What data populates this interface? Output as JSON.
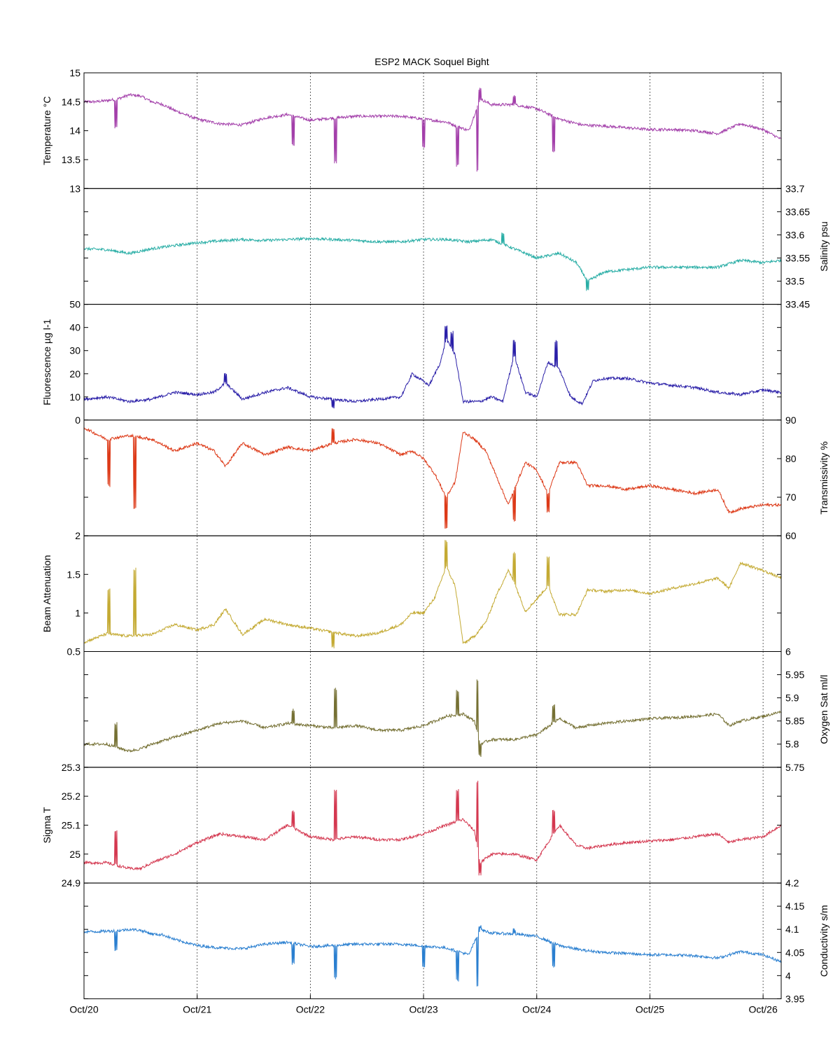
{
  "chart_data": {
    "type": "line",
    "title": "ESP2 MACK  Soquel Bight",
    "x_range": [
      "Oct/20",
      "Oct/26 04:00"
    ],
    "x_ticks": [
      "Oct/20",
      "Oct/21",
      "Oct/22",
      "Oct/23",
      "Oct/24",
      "Oct/25",
      "Oct/26"
    ],
    "panels": [
      {
        "name": "temperature",
        "ylabel": "Temperature °C",
        "axis_side": "left",
        "ylim": [
          13,
          15
        ],
        "ticks": [
          "13",
          "13.5",
          "14",
          "14.5",
          "15"
        ],
        "color": "#a33faa",
        "x_days": [
          0.0,
          0.1,
          0.2,
          0.3,
          0.4,
          0.5,
          0.6,
          0.7,
          0.8,
          1.0,
          1.2,
          1.4,
          1.6,
          1.8,
          2.0,
          2.2,
          2.4,
          2.6,
          2.8,
          3.0,
          3.2,
          3.4,
          3.5,
          3.6,
          3.8,
          4.0,
          4.2,
          4.4,
          4.6,
          4.8,
          5.0,
          5.2,
          5.4,
          5.6,
          5.8,
          6.0,
          6.16
        ],
        "values": [
          14.5,
          14.5,
          14.52,
          14.55,
          14.62,
          14.6,
          14.5,
          14.45,
          14.35,
          14.2,
          14.12,
          14.1,
          14.22,
          14.28,
          14.18,
          14.22,
          14.25,
          14.25,
          14.25,
          14.2,
          14.15,
          14.0,
          14.55,
          14.45,
          14.45,
          14.38,
          14.2,
          14.1,
          14.08,
          14.05,
          14.02,
          14.02,
          14.0,
          13.95,
          14.12,
          14.02,
          13.85
        ],
        "spikes": [
          {
            "x": 0.28,
            "value": 14.05
          },
          {
            "x": 1.85,
            "value": 13.75
          },
          {
            "x": 2.22,
            "value": 13.45
          },
          {
            "x": 3.0,
            "value": 13.7
          },
          {
            "x": 3.3,
            "value": 13.4
          },
          {
            "x": 3.48,
            "value": 13.3
          },
          {
            "x": 3.5,
            "value": 14.72
          },
          {
            "x": 3.8,
            "value": 14.6
          },
          {
            "x": 4.15,
            "value": 13.65
          }
        ]
      },
      {
        "name": "salinity",
        "ylabel": "Salinity psu",
        "axis_side": "right",
        "ylim": [
          33.45,
          33.7
        ],
        "ticks": [
          "33.45",
          "33.5",
          "33.55",
          "33.6",
          "33.65",
          "33.7"
        ],
        "color": "#2aaea6",
        "x_days": [
          0.0,
          0.2,
          0.4,
          0.6,
          0.8,
          1.0,
          1.2,
          1.4,
          1.6,
          1.8,
          2.0,
          2.2,
          2.4,
          2.6,
          2.8,
          3.0,
          3.2,
          3.4,
          3.6,
          3.8,
          4.0,
          4.2,
          4.35,
          4.45,
          4.6,
          4.8,
          5.0,
          5.2,
          5.4,
          5.6,
          5.8,
          6.0,
          6.16
        ],
        "values": [
          33.57,
          33.568,
          33.56,
          33.57,
          33.577,
          33.583,
          33.587,
          33.59,
          33.588,
          33.59,
          33.592,
          33.59,
          33.588,
          33.585,
          33.585,
          33.59,
          33.59,
          33.585,
          33.59,
          33.57,
          33.55,
          33.56,
          33.54,
          33.5,
          33.52,
          33.525,
          33.53,
          33.53,
          33.53,
          33.53,
          33.545,
          33.54,
          33.545
        ],
        "spikes": [
          {
            "x": 3.7,
            "value": 33.605
          },
          {
            "x": 4.45,
            "value": 33.482
          }
        ]
      },
      {
        "name": "fluorescence",
        "ylabel": "Fluorescence µg l-1",
        "axis_side": "left",
        "ylim": [
          0,
          50
        ],
        "ticks": [
          "0",
          "10",
          "20",
          "30",
          "40",
          "50"
        ],
        "color": "#2a1fa8",
        "x_days": [
          0.0,
          0.2,
          0.4,
          0.6,
          0.8,
          1.0,
          1.15,
          1.25,
          1.4,
          1.6,
          1.8,
          2.0,
          2.2,
          2.4,
          2.6,
          2.8,
          2.9,
          3.05,
          3.15,
          3.2,
          3.28,
          3.35,
          3.5,
          3.6,
          3.7,
          3.8,
          3.9,
          4.0,
          4.1,
          4.2,
          4.3,
          4.4,
          4.5,
          4.6,
          4.8,
          5.0,
          5.2,
          5.4,
          5.6,
          5.8,
          6.0,
          6.16
        ],
        "values": [
          9,
          10,
          8,
          9,
          12,
          11,
          12,
          16,
          9,
          12,
          14,
          10,
          9,
          8,
          9,
          10,
          20,
          15,
          25,
          35,
          28,
          8,
          8,
          10,
          8,
          28,
          12,
          10,
          25,
          22,
          10,
          7,
          17,
          18,
          18,
          16,
          15,
          14,
          12,
          11,
          13,
          12
        ],
        "spikes": [
          {
            "x": 1.25,
            "value": 20
          },
          {
            "x": 2.2,
            "value": 5
          },
          {
            "x": 3.2,
            "value": 41
          },
          {
            "x": 3.25,
            "value": 38
          },
          {
            "x": 3.8,
            "value": 34
          },
          {
            "x": 4.17,
            "value": 34
          }
        ]
      },
      {
        "name": "transmissivity",
        "ylabel": "Transmissivity %",
        "axis_side": "right",
        "ylim": [
          60,
          90
        ],
        "ticks": [
          "60",
          "70",
          "80",
          "90"
        ],
        "color": "#dd3a18",
        "x_days": [
          0.0,
          0.2,
          0.4,
          0.6,
          0.8,
          1.0,
          1.15,
          1.25,
          1.4,
          1.6,
          1.8,
          2.0,
          2.2,
          2.4,
          2.6,
          2.8,
          2.9,
          3.0,
          3.1,
          3.2,
          3.28,
          3.35,
          3.45,
          3.55,
          3.65,
          3.75,
          3.8,
          3.9,
          4.0,
          4.1,
          4.2,
          4.35,
          4.45,
          4.6,
          4.8,
          5.0,
          5.2,
          5.4,
          5.6,
          5.7,
          5.8,
          6.0,
          6.16
        ],
        "values": [
          88,
          85,
          86,
          85,
          82,
          84,
          82,
          78,
          84,
          81,
          83,
          82,
          84,
          85,
          84,
          81,
          82,
          80,
          76,
          70,
          74,
          87,
          85,
          82,
          75,
          68,
          72,
          79,
          77,
          71,
          79,
          79,
          73,
          73,
          72,
          73,
          72,
          71,
          72,
          66,
          67,
          68,
          68
        ],
        "spikes": [
          {
            "x": 0.45,
            "value": 67
          },
          {
            "x": 0.22,
            "value": 73
          },
          {
            "x": 3.2,
            "value": 62
          },
          {
            "x": 3.8,
            "value": 64
          },
          {
            "x": 4.1,
            "value": 66
          },
          {
            "x": 2.2,
            "value": 88
          }
        ]
      },
      {
        "name": "beam_attenuation",
        "ylabel": "Beam Attenuation",
        "axis_side": "left",
        "ylim": [
          0.5,
          2
        ],
        "ticks": [
          "0.5",
          "1",
          "1.5",
          "2"
        ],
        "color": "#c4aa33",
        "x_days": [
          0.0,
          0.2,
          0.4,
          0.6,
          0.8,
          1.0,
          1.15,
          1.25,
          1.4,
          1.6,
          1.8,
          2.0,
          2.2,
          2.4,
          2.6,
          2.8,
          2.9,
          3.0,
          3.1,
          3.2,
          3.28,
          3.35,
          3.45,
          3.55,
          3.65,
          3.75,
          3.8,
          3.9,
          4.0,
          4.1,
          4.2,
          4.35,
          4.45,
          4.6,
          4.8,
          5.0,
          5.2,
          5.4,
          5.6,
          5.7,
          5.8,
          6.0,
          6.16
        ],
        "values": [
          0.62,
          0.73,
          0.7,
          0.72,
          0.85,
          0.78,
          0.85,
          1.05,
          0.72,
          0.92,
          0.85,
          0.8,
          0.75,
          0.7,
          0.74,
          0.85,
          1.0,
          1.0,
          1.2,
          1.6,
          1.35,
          0.6,
          0.7,
          0.88,
          1.25,
          1.55,
          1.4,
          1.02,
          1.18,
          1.35,
          0.98,
          0.98,
          1.3,
          1.28,
          1.3,
          1.25,
          1.32,
          1.38,
          1.45,
          1.32,
          1.65,
          1.55,
          1.45
        ],
        "spikes": [
          {
            "x": 0.45,
            "value": 1.57
          },
          {
            "x": 0.22,
            "value": 1.3
          },
          {
            "x": 3.2,
            "value": 1.93
          },
          {
            "x": 3.8,
            "value": 1.78
          },
          {
            "x": 4.1,
            "value": 1.72
          },
          {
            "x": 2.2,
            "value": 0.55
          }
        ]
      },
      {
        "name": "oxygen",
        "ylabel": "Oxygen Sat ml/l",
        "axis_side": "right",
        "ylim": [
          5.75,
          6
        ],
        "ticks": [
          "5.75",
          "5.8",
          "5.85",
          "5.9",
          "5.95",
          "6"
        ],
        "color": "#757033",
        "x_days": [
          0.0,
          0.2,
          0.4,
          0.5,
          0.6,
          0.8,
          1.0,
          1.2,
          1.4,
          1.6,
          1.8,
          2.0,
          2.2,
          2.4,
          2.6,
          2.8,
          3.0,
          3.2,
          3.35,
          3.45,
          3.5,
          3.6,
          3.8,
          4.0,
          4.2,
          4.35,
          4.45,
          4.6,
          4.8,
          5.0,
          5.2,
          5.4,
          5.6,
          5.7,
          5.8,
          6.0,
          6.16
        ],
        "values": [
          5.8,
          5.8,
          5.785,
          5.79,
          5.8,
          5.815,
          5.83,
          5.845,
          5.85,
          5.835,
          5.845,
          5.84,
          5.835,
          5.84,
          5.83,
          5.83,
          5.84,
          5.86,
          5.865,
          5.85,
          5.8,
          5.81,
          5.81,
          5.82,
          5.855,
          5.835,
          5.84,
          5.845,
          5.85,
          5.855,
          5.857,
          5.86,
          5.865,
          5.84,
          5.85,
          5.86,
          5.87
        ],
        "spikes": [
          {
            "x": 0.28,
            "value": 5.845
          },
          {
            "x": 1.85,
            "value": 5.875
          },
          {
            "x": 2.22,
            "value": 5.92
          },
          {
            "x": 3.3,
            "value": 5.915
          },
          {
            "x": 3.48,
            "value": 5.94
          },
          {
            "x": 3.5,
            "value": 5.775
          },
          {
            "x": 4.15,
            "value": 5.885
          }
        ]
      },
      {
        "name": "sigma_t",
        "ylabel": "Sigma T",
        "axis_side": "left",
        "ylim": [
          24.9,
          25.3
        ],
        "ticks": [
          "24.9",
          "25",
          "25.1",
          "25.2",
          "25.3"
        ],
        "color": "#d43850",
        "x_days": [
          0.0,
          0.2,
          0.4,
          0.5,
          0.6,
          0.8,
          1.0,
          1.2,
          1.4,
          1.6,
          1.8,
          2.0,
          2.2,
          2.4,
          2.6,
          2.8,
          3.0,
          3.2,
          3.35,
          3.45,
          3.5,
          3.6,
          3.8,
          4.0,
          4.2,
          4.35,
          4.45,
          4.6,
          4.8,
          5.0,
          5.2,
          5.4,
          5.6,
          5.7,
          5.8,
          6.0,
          6.16
        ],
        "values": [
          24.97,
          24.97,
          24.95,
          24.95,
          24.97,
          25.0,
          25.04,
          25.07,
          25.06,
          25.05,
          25.1,
          25.06,
          25.05,
          25.06,
          25.05,
          25.05,
          25.07,
          25.1,
          25.12,
          25.08,
          24.97,
          25.0,
          25.0,
          24.98,
          25.1,
          25.03,
          25.02,
          25.03,
          25.04,
          25.045,
          25.05,
          25.06,
          25.07,
          25.04,
          25.05,
          25.06,
          25.1
        ],
        "spikes": [
          {
            "x": 0.28,
            "value": 25.08
          },
          {
            "x": 1.85,
            "value": 25.15
          },
          {
            "x": 2.22,
            "value": 25.22
          },
          {
            "x": 3.3,
            "value": 25.22
          },
          {
            "x": 3.48,
            "value": 25.25
          },
          {
            "x": 3.5,
            "value": 24.93
          },
          {
            "x": 4.15,
            "value": 25.15
          }
        ]
      },
      {
        "name": "conductivity",
        "ylabel": "Conductivity s/m",
        "axis_side": "right",
        "ylim": [
          3.95,
          4.2
        ],
        "ticks": [
          "3.95",
          "4",
          "4.05",
          "4.1",
          "4.15",
          "4.2"
        ],
        "color": "#2a7fd0",
        "x_days": [
          0.0,
          0.1,
          0.2,
          0.3,
          0.4,
          0.5,
          0.6,
          0.7,
          0.8,
          1.0,
          1.2,
          1.4,
          1.6,
          1.8,
          2.0,
          2.2,
          2.4,
          2.6,
          2.8,
          3.0,
          3.2,
          3.4,
          3.5,
          3.6,
          3.8,
          4.0,
          4.2,
          4.4,
          4.6,
          4.8,
          5.0,
          5.2,
          5.4,
          5.6,
          5.8,
          6.0,
          6.16
        ],
        "values": [
          4.095,
          4.095,
          4.096,
          4.097,
          4.1,
          4.098,
          4.09,
          4.088,
          4.078,
          4.065,
          4.06,
          4.058,
          4.068,
          4.072,
          4.063,
          4.065,
          4.068,
          4.068,
          4.068,
          4.064,
          4.06,
          4.045,
          4.1,
          4.092,
          4.09,
          4.085,
          4.065,
          4.055,
          4.05,
          4.048,
          4.045,
          4.045,
          4.043,
          4.038,
          4.052,
          4.045,
          4.03
        ],
        "spikes": [
          {
            "x": 0.28,
            "value": 4.053
          },
          {
            "x": 1.85,
            "value": 4.025
          },
          {
            "x": 2.22,
            "value": 3.995
          },
          {
            "x": 3.0,
            "value": 4.02
          },
          {
            "x": 3.3,
            "value": 3.99
          },
          {
            "x": 3.48,
            "value": 3.978
          },
          {
            "x": 3.5,
            "value": 4.108
          },
          {
            "x": 3.8,
            "value": 4.1
          },
          {
            "x": 4.15,
            "value": 4.02
          }
        ]
      }
    ]
  }
}
